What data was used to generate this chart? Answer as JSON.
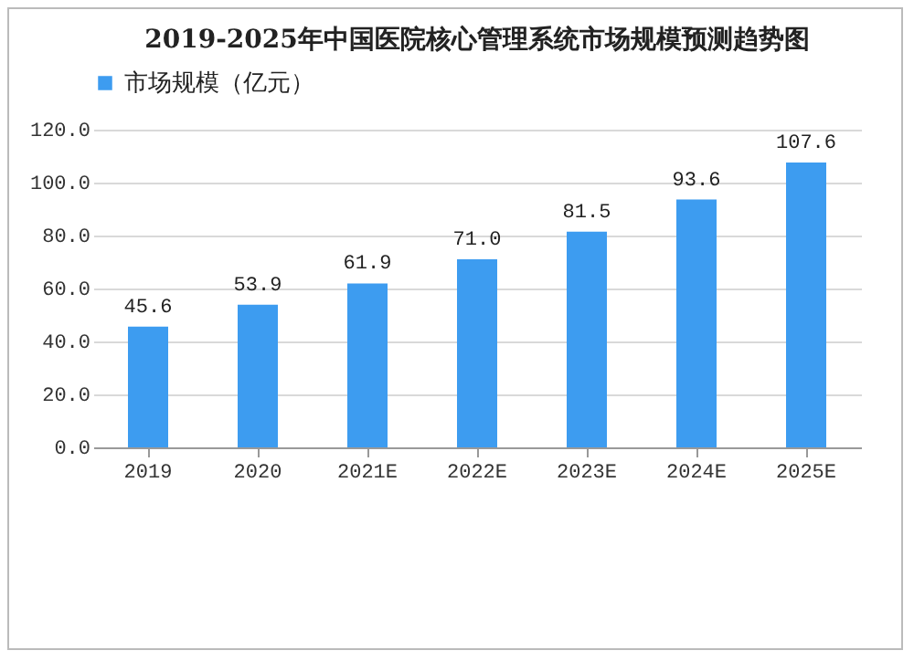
{
  "chart_data": {
    "type": "bar",
    "title": "2019-2025年中国医院核心管理系统市场规模预测趋势图",
    "categories": [
      "2019",
      "2020",
      "2021E",
      "2022E",
      "2023E",
      "2024E",
      "2025E"
    ],
    "series": [
      {
        "name": "市场规模（亿元）",
        "color": "#3d9cf0",
        "values": [
          45.6,
          53.9,
          61.9,
          71.0,
          81.5,
          93.6,
          107.6
        ],
        "value_labels": [
          "45.6",
          "53.9",
          "61.9",
          "71.0",
          "81.5",
          "93.6",
          "107.6"
        ]
      }
    ],
    "ylim": [
      0,
      120
    ],
    "yticks": [
      {
        "value": 0,
        "label": "0.0"
      },
      {
        "value": 20,
        "label": "20.0"
      },
      {
        "value": 40,
        "label": "40.0"
      },
      {
        "value": 60,
        "label": "60.0"
      },
      {
        "value": 80,
        "label": "80.0"
      },
      {
        "value": 100,
        "label": "100.0"
      },
      {
        "value": 120,
        "label": "120.0"
      }
    ],
    "grid": "y",
    "legend": "top"
  }
}
